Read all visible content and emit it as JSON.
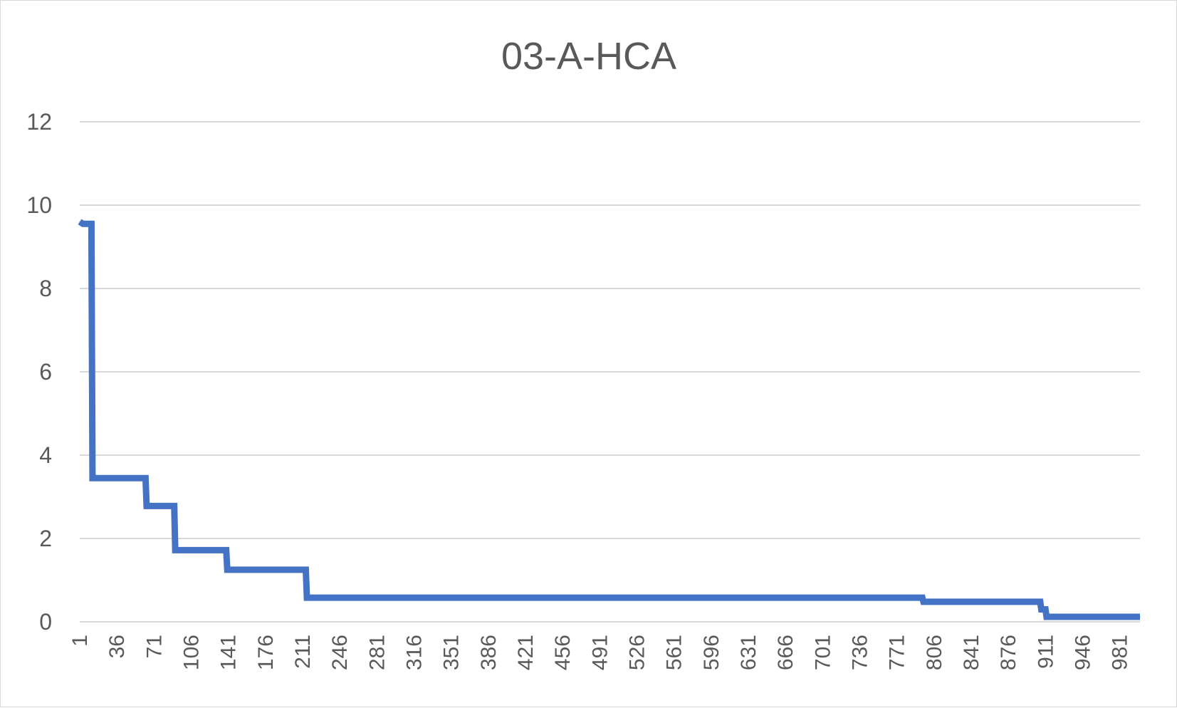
{
  "chart_data": {
    "type": "line",
    "title": "03-A-HCA",
    "xlabel": "",
    "ylabel": "",
    "ylim": [
      0,
      12
    ],
    "yticks": [
      0,
      2,
      4,
      6,
      8,
      10,
      12
    ],
    "xlim": [
      1,
      1000
    ],
    "xticks": [
      1,
      36,
      71,
      106,
      141,
      176,
      211,
      246,
      281,
      316,
      351,
      386,
      421,
      456,
      491,
      526,
      561,
      596,
      631,
      666,
      701,
      736,
      771,
      806,
      841,
      876,
      911,
      946,
      981
    ],
    "grid": true,
    "legend": "none",
    "series": [
      {
        "color": "#4472c4",
        "points": [
          [
            1,
            9.6
          ],
          [
            4,
            9.55
          ],
          [
            12,
            9.55
          ],
          [
            13,
            3.45
          ],
          [
            63,
            3.45
          ],
          [
            64,
            2.78
          ],
          [
            90,
            2.78
          ],
          [
            91,
            1.72
          ],
          [
            139,
            1.72
          ],
          [
            140,
            1.25
          ],
          [
            214,
            1.25
          ],
          [
            215,
            0.58
          ],
          [
            795,
            0.58
          ],
          [
            796,
            0.48
          ],
          [
            906,
            0.48
          ],
          [
            907,
            0.3
          ],
          [
            911,
            0.3
          ],
          [
            912,
            0.12
          ],
          [
            1000,
            0.12
          ]
        ]
      }
    ]
  }
}
